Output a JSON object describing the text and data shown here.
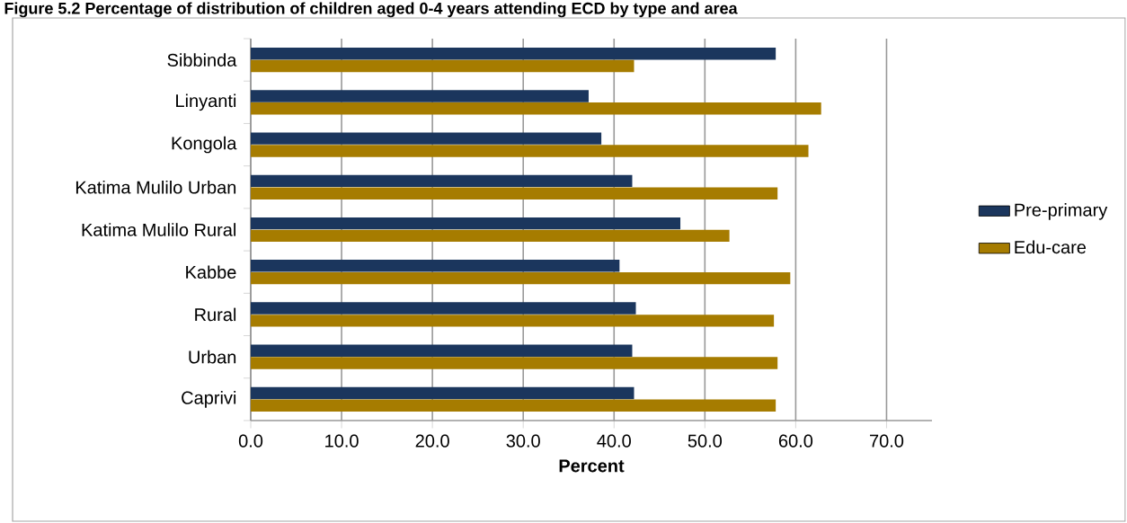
{
  "chart_data": {
    "type": "bar",
    "orientation": "horizontal",
    "title": "Figure 5.2 Percentage of distribution of children aged 0-4 years attending ECD by type and area",
    "xlabel": "Percent",
    "categories": [
      "Sibbinda",
      "Linyanti",
      "Kongola",
      "Katima Mulilo Urban",
      "Katima Mulilo Rural",
      "Kabbe",
      "Rural",
      "Urban",
      "Caprivi"
    ],
    "series": [
      {
        "name": "Pre-primary",
        "color": "#1b365d",
        "values": [
          57.8,
          37.2,
          38.6,
          42.0,
          47.3,
          40.6,
          42.4,
          42.0,
          42.2
        ]
      },
      {
        "name": "Edu-care",
        "color": "#a67c00",
        "values": [
          42.2,
          62.8,
          61.4,
          58.0,
          52.7,
          59.4,
          57.6,
          58.0,
          57.8
        ]
      }
    ],
    "xlim": [
      0,
      75
    ],
    "xticks": [
      {
        "value": 0,
        "label": "0.0"
      },
      {
        "value": 10,
        "label": "10.0"
      },
      {
        "value": 20,
        "label": "20.0"
      },
      {
        "value": 30,
        "label": "30.0"
      },
      {
        "value": 40,
        "label": "40.0"
      },
      {
        "value": 50,
        "label": "50.0"
      },
      {
        "value": 60,
        "label": "60.0"
      },
      {
        "value": 70,
        "label": "70.0"
      }
    ],
    "grid": "x",
    "legend": "right"
  }
}
